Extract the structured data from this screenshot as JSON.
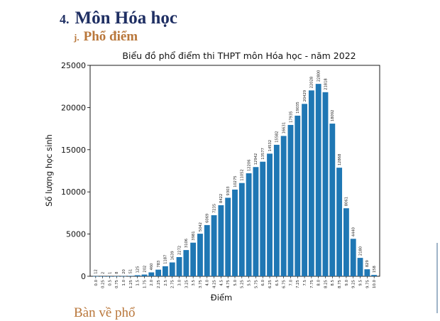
{
  "document": {
    "section_number": "4.",
    "section_title": "Môn Hóa học",
    "subsection_letter": "j.",
    "subsection_title": "Phổ điểm",
    "next_heading_partial": "Bàn về phổ"
  },
  "chart_data": {
    "type": "bar",
    "title": "Biểu đồ phổ điểm thi THPT môn Hóa học - năm 2022",
    "xlabel": "Điểm",
    "ylabel": "Số lượng học sinh",
    "ylim": [
      0,
      25000
    ],
    "yticks": [
      0,
      5000,
      10000,
      15000,
      20000,
      25000
    ],
    "bar_color": "#1f77b4",
    "categories": [
      "0.0",
      "0.25",
      "0.5",
      "0.75",
      "1.0",
      "1.25",
      "1.5",
      "1.75",
      "2.0",
      "2.25",
      "2.5",
      "2.75",
      "3.0",
      "3.25",
      "3.5",
      "3.75",
      "4.0",
      "4.25",
      "4.5",
      "4.75",
      "5.0",
      "5.25",
      "5.5",
      "5.75",
      "6.0",
      "6.25",
      "6.5",
      "6.75",
      "7.0",
      "7.25",
      "7.5",
      "7.75",
      "8.0",
      "8.25",
      "8.5",
      "8.75",
      "9.0",
      "9.25",
      "9.5",
      "9.75",
      "10.0"
    ],
    "values": [
      12,
      2,
      1,
      8,
      20,
      51,
      125,
      202,
      460,
      783,
      1187,
      1639,
      2272,
      3106,
      3981,
      5042,
      6069,
      7235,
      8422,
      9303,
      10275,
      11052,
      12206,
      12942,
      13577,
      14532,
      15582,
      16631,
      17935,
      19035,
      20429,
      22028,
      22800,
      21818,
      18092,
      12868,
      8061,
      4440,
      2180,
      829,
      158
    ]
  }
}
